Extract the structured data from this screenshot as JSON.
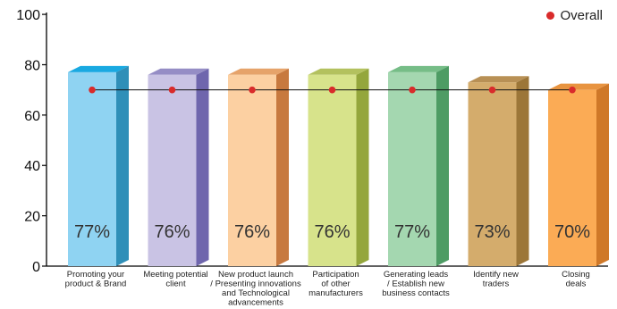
{
  "chart_data": {
    "type": "bar",
    "categories": [
      "Promoting your\nproduct & Brand",
      "Meeting potential\nclient",
      "New product launch\n/ Presenting innovations\nand Technological\nadvancements",
      "Participation\nof other\nmanufacturers",
      "Generating leads\n/ Establish new\nbusiness contacts",
      "Identify new\ntraders",
      "Closing\ndeals"
    ],
    "series": [
      {
        "values": [
          77,
          76,
          76,
          76,
          77,
          73,
          70
        ]
      },
      {
        "name": "Overall",
        "type": "line",
        "values": [
          70,
          70,
          70,
          70,
          70,
          70,
          70
        ]
      }
    ],
    "data_labels": [
      "77%",
      "76%",
      "76%",
      "76%",
      "77%",
      "73%",
      "70%"
    ],
    "ylim": [
      0,
      105
    ],
    "yticks": [
      "0",
      "20",
      "40",
      "60",
      "80",
      "100"
    ],
    "ytick_values": [
      0,
      20,
      40,
      60,
      80,
      100
    ],
    "legend_position": "top-right",
    "overall_color": "#d92b2b",
    "bar_colors": [
      {
        "front": "#8fd3f2",
        "side": "#2f8fb8",
        "top": "#19a9e1"
      },
      {
        "front": "#c9c3e4",
        "side": "#6f66ad",
        "top": "#958dc5"
      },
      {
        "front": "#fcd0a2",
        "side": "#c7793f",
        "top": "#e6a36a"
      },
      {
        "front": "#d7e38b",
        "side": "#94a63c",
        "top": "#b3c15e"
      },
      {
        "front": "#a4d7b0",
        "side": "#4e9c64",
        "top": "#76bd87"
      },
      {
        "front": "#d4ac6c",
        "side": "#9c7638",
        "top": "#b89055"
      },
      {
        "front": "#fbab55",
        "side": "#cf7828",
        "top": "#e89440"
      }
    ]
  }
}
